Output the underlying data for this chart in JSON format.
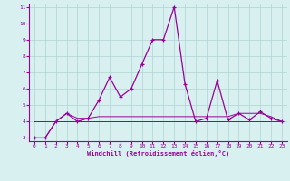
{
  "xlabel": "Windchill (Refroidissement éolien,°C)",
  "x": [
    0,
    1,
    2,
    3,
    4,
    5,
    6,
    7,
    8,
    9,
    10,
    11,
    12,
    13,
    14,
    15,
    16,
    17,
    18,
    19,
    20,
    21,
    22,
    23
  ],
  "y_main": [
    3,
    3,
    4,
    4.5,
    4,
    4.2,
    5.3,
    6.7,
    5.5,
    6.0,
    7.5,
    9.0,
    9.0,
    11.0,
    6.3,
    4.0,
    4.2,
    6.5,
    4.1,
    4.5,
    4.1,
    4.6,
    4.2,
    4.0
  ],
  "y_line1": [
    3.0,
    3.0,
    4.0,
    4.5,
    4.2,
    4.2,
    4.3,
    4.3,
    4.3,
    4.3,
    4.3,
    4.3,
    4.3,
    4.3,
    4.3,
    4.3,
    4.3,
    4.3,
    4.3,
    4.5,
    4.5,
    4.5,
    4.3,
    4.0
  ],
  "y_line2": [
    4.0,
    4.0,
    4.0,
    4.0,
    4.0,
    4.0,
    4.0,
    4.0,
    4.0,
    4.0,
    4.0,
    4.0,
    4.0,
    4.0,
    4.0,
    4.0,
    4.0,
    4.0,
    4.0,
    4.0,
    4.0,
    4.0,
    4.0,
    4.0
  ],
  "y_line3": [
    4.0,
    4.0,
    4.0,
    4.0,
    4.0,
    4.0,
    4.0,
    4.0,
    4.0,
    4.0,
    4.0,
    4.0,
    4.0,
    4.0,
    4.0,
    4.0,
    4.0,
    4.0,
    4.0,
    4.0,
    4.0,
    4.0,
    4.0,
    4.0
  ],
  "line_color": "#990099",
  "bg_color": "#d8f0f0",
  "grid_color": "#b0d4d4",
  "ylim": [
    2.8,
    11.2
  ],
  "xlim": [
    -0.5,
    23.5
  ],
  "yticks": [
    3,
    4,
    5,
    6,
    7,
    8,
    9,
    10,
    11
  ],
  "xticks": [
    0,
    1,
    2,
    3,
    4,
    5,
    6,
    7,
    8,
    9,
    10,
    11,
    12,
    13,
    14,
    15,
    16,
    17,
    18,
    19,
    20,
    21,
    22,
    23
  ]
}
